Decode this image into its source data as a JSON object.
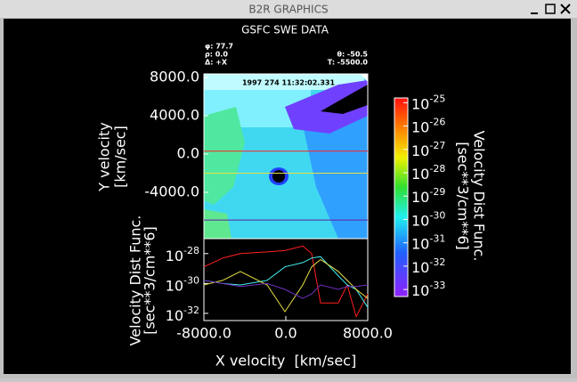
{
  "window": {
    "title": "B2R GRAPHICS"
  },
  "chart_data": [
    {
      "type": "heatmap",
      "title": "GSFC SWE DATA",
      "params": [
        "φ: 77.7",
        "ρ: 0.0",
        "Δ: +X"
      ],
      "params_right": [
        "θ: -50.5",
        "T: -5500.0"
      ],
      "timestamp": "1997 274 11:32:02.331",
      "ylabel": [
        "Y velocity",
        "[km/sec]"
      ],
      "xlim": [
        -8000,
        8000
      ],
      "ylim": [
        -8840,
        8370
      ],
      "yticks": [
        {
          "value": 8000,
          "label": "8000.0"
        },
        {
          "value": 4000,
          "label": "4000.0"
        },
        {
          "value": 0,
          "label": "0.0"
        },
        {
          "value": -4000,
          "label": "-4000.0"
        }
      ],
      "cut_lines": [
        {
          "y": 300,
          "color": "#ff2020"
        },
        {
          "y": -2000,
          "color": "#e8e040"
        },
        {
          "y": -6900,
          "color": "#6020a0"
        }
      ],
      "colorbar": {
        "label": [
          "Velocity Dist Func.",
          "[sec**3/cm**6]"
        ],
        "log": true,
        "clim": [
          5e-34,
          1.6e-25
        ],
        "ticks": [
          {
            "value": 1e-25,
            "label": "10^-25"
          },
          {
            "value": 1e-26,
            "label": "10^-26"
          },
          {
            "value": 1e-27,
            "label": "10^-27"
          },
          {
            "value": 1e-28,
            "label": "10^-28"
          },
          {
            "value": 1e-29,
            "label": "10^-29"
          },
          {
            "value": 1e-30,
            "label": "10^-30"
          },
          {
            "value": 1e-31,
            "label": "10^-31"
          },
          {
            "value": 1e-32,
            "label": "10^-32"
          },
          {
            "value": 1e-33,
            "label": "10^-33"
          }
        ]
      }
    },
    {
      "type": "line",
      "log_y": true,
      "xlabel": "X velocity  [km/sec]",
      "ylabel": [
        "Velocity Dist Func.",
        "[sec**3/cm**6]"
      ],
      "xlim": [
        -8000,
        8000
      ],
      "xticks": [
        {
          "value": -8000,
          "label": "-8000.0"
        },
        {
          "value": 0,
          "label": "0.0"
        },
        {
          "value": 8000,
          "label": "8000.0"
        }
      ],
      "ylim": [
        3.3e-33,
        1e-27
      ],
      "yticks": [
        {
          "value": 1e-28,
          "label": "10^-28"
        },
        {
          "value": 1e-30,
          "label": "10^-30"
        },
        {
          "value": 1e-32,
          "label": "10^-32"
        }
      ],
      "x": [
        -8000,
        -6174,
        -4435,
        -1826,
        -87,
        1652,
        2522,
        3391,
        5130,
        6000,
        6870,
        8000
      ],
      "series": [
        {
          "color": "#ff2020",
          "values": [
            1.3e-29,
            5e-29,
            1e-28,
            1.3e-28,
            1.6e-28,
            3.2e-28,
            1e-28,
            5e-32,
            5e-32,
            8e-31,
            6e-33,
            2e-31
          ]
        },
        {
          "color": "#40f0f0",
          "values": [
            1.6e-30,
            1e-30,
            8e-31,
            1.6e-30,
            1.3e-29,
            2.5e-29,
            5e-29,
            6.3e-29,
            3.2e-30,
            8e-31,
            4e-31,
            2.5e-32
          ]
        },
        {
          "color": "#e8e040",
          "values": [
            8e-31,
            1.6e-30,
            6.3e-30,
            8e-31,
            1.3e-32,
            8e-31,
            1.3e-29,
            4e-29,
            6.3e-30,
            1.6e-30,
            4e-31,
            1e-31
          ]
        },
        {
          "color": "#7030c0",
          "values": [
            1.6e-30,
            1e-30,
            6.3e-31,
            1e-30,
            4e-31,
            1e-31,
            2e-31,
            8e-31,
            4e-31,
            6.3e-31,
            6.3e-31,
            8e-31
          ]
        }
      ]
    }
  ]
}
